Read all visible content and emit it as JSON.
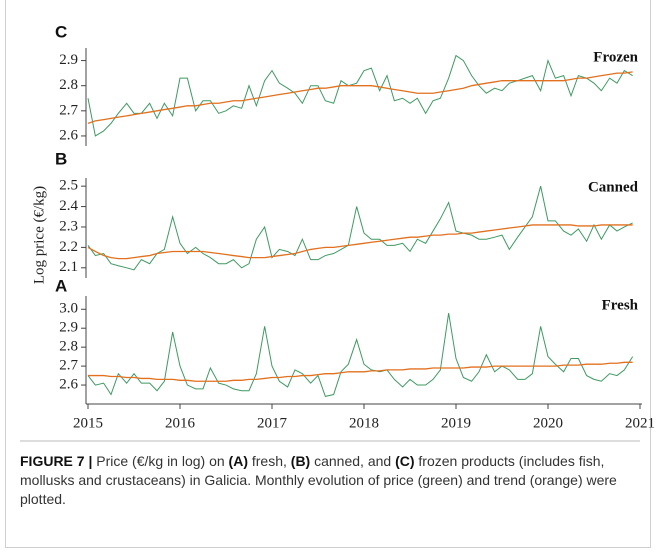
{
  "ylabel": "Log price (€/kg)",
  "caption": [
    "FIGURE 7 |",
    " Price (€/kg in log) on ",
    "(A)",
    " fresh, ",
    "(B)",
    " canned, and ",
    "(C)",
    " frozen products (includes fish, mollusks and crustaceans) in Galicia. Monthly evolution of price (green) and trend (orange) were plotted."
  ],
  "chart_data": [
    {
      "type": "line",
      "panel": "C",
      "title": "Frozen",
      "x": [
        2015,
        2015.08,
        2015.17,
        2015.25,
        2015.33,
        2015.42,
        2015.5,
        2015.58,
        2015.67,
        2015.75,
        2015.83,
        2015.92,
        2016,
        2016.08,
        2016.17,
        2016.25,
        2016.33,
        2016.42,
        2016.5,
        2016.58,
        2016.67,
        2016.75,
        2016.83,
        2016.92,
        2017,
        2017.08,
        2017.17,
        2017.25,
        2017.33,
        2017.42,
        2017.5,
        2017.58,
        2017.67,
        2017.75,
        2017.83,
        2017.92,
        2018,
        2018.08,
        2018.17,
        2018.25,
        2018.33,
        2018.42,
        2018.5,
        2018.58,
        2018.67,
        2018.75,
        2018.83,
        2018.92,
        2019,
        2019.08,
        2019.17,
        2019.25,
        2019.33,
        2019.42,
        2019.5,
        2019.58,
        2019.67,
        2019.75,
        2019.83,
        2019.92,
        2020,
        2020.08,
        2020.17,
        2020.25,
        2020.33,
        2020.42,
        2020.5,
        2020.58,
        2020.67,
        2020.75,
        2020.83,
        2020.92
      ],
      "xlim": [
        2015,
        2021
      ],
      "ylim": [
        2.56,
        2.95
      ],
      "yticks": [
        2.6,
        2.7,
        2.8,
        2.9
      ],
      "series": [
        {
          "color": "#3f9a62",
          "values": [
            2.75,
            2.6,
            2.62,
            2.65,
            2.69,
            2.73,
            2.69,
            2.69,
            2.73,
            2.67,
            2.73,
            2.68,
            2.83,
            2.83,
            2.7,
            2.74,
            2.74,
            2.69,
            2.7,
            2.72,
            2.71,
            2.8,
            2.72,
            2.82,
            2.86,
            2.81,
            2.79,
            2.77,
            2.73,
            2.8,
            2.8,
            2.74,
            2.73,
            2.82,
            2.8,
            2.81,
            2.86,
            2.87,
            2.78,
            2.84,
            2.74,
            2.75,
            2.73,
            2.75,
            2.69,
            2.74,
            2.75,
            2.83,
            2.92,
            2.9,
            2.84,
            2.8,
            2.77,
            2.79,
            2.78,
            2.81,
            2.82,
            2.83,
            2.84,
            2.78,
            2.9,
            2.83,
            2.84,
            2.76,
            2.84,
            2.83,
            2.81,
            2.78,
            2.83,
            2.81,
            2.86,
            2.84
          ]
        },
        {
          "color": "#e2701e",
          "values": [
            2.65,
            2.66,
            2.665,
            2.67,
            2.675,
            2.68,
            2.685,
            2.69,
            2.695,
            2.7,
            2.705,
            2.71,
            2.715,
            2.72,
            2.72,
            2.725,
            2.73,
            2.73,
            2.735,
            2.74,
            2.74,
            2.745,
            2.75,
            2.755,
            2.76,
            2.765,
            2.77,
            2.775,
            2.78,
            2.785,
            2.79,
            2.79,
            2.795,
            2.8,
            2.8,
            2.8,
            2.8,
            2.8,
            2.795,
            2.79,
            2.785,
            2.78,
            2.775,
            2.77,
            2.77,
            2.77,
            2.775,
            2.78,
            2.785,
            2.79,
            2.8,
            2.805,
            2.81,
            2.815,
            2.82,
            2.82,
            2.82,
            2.82,
            2.82,
            2.82,
            2.82,
            2.82,
            2.82,
            2.825,
            2.83,
            2.83,
            2.835,
            2.84,
            2.845,
            2.85,
            2.85,
            2.855
          ]
        }
      ]
    },
    {
      "type": "line",
      "panel": "B",
      "title": "Canned",
      "x": [
        2015,
        2015.08,
        2015.17,
        2015.25,
        2015.33,
        2015.42,
        2015.5,
        2015.58,
        2015.67,
        2015.75,
        2015.83,
        2015.92,
        2016,
        2016.08,
        2016.17,
        2016.25,
        2016.33,
        2016.42,
        2016.5,
        2016.58,
        2016.67,
        2016.75,
        2016.83,
        2016.92,
        2017,
        2017.08,
        2017.17,
        2017.25,
        2017.33,
        2017.42,
        2017.5,
        2017.58,
        2017.67,
        2017.75,
        2017.83,
        2017.92,
        2018,
        2018.08,
        2018.17,
        2018.25,
        2018.33,
        2018.42,
        2018.5,
        2018.58,
        2018.67,
        2018.75,
        2018.83,
        2018.92,
        2019,
        2019.08,
        2019.17,
        2019.25,
        2019.33,
        2019.42,
        2019.5,
        2019.58,
        2019.67,
        2019.75,
        2019.83,
        2019.92,
        2020,
        2020.08,
        2020.17,
        2020.25,
        2020.33,
        2020.42,
        2020.5,
        2020.58,
        2020.67,
        2020.75,
        2020.83,
        2020.92
      ],
      "xlim": [
        2015,
        2021
      ],
      "ylim": [
        2.05,
        2.54
      ],
      "yticks": [
        2.1,
        2.2,
        2.3,
        2.4,
        2.5
      ],
      "series": [
        {
          "color": "#3f9a62",
          "values": [
            2.21,
            2.16,
            2.17,
            2.12,
            2.11,
            2.1,
            2.09,
            2.14,
            2.12,
            2.17,
            2.19,
            2.35,
            2.22,
            2.17,
            2.2,
            2.17,
            2.15,
            2.12,
            2.12,
            2.14,
            2.1,
            2.12,
            2.24,
            2.3,
            2.15,
            2.19,
            2.18,
            2.16,
            2.24,
            2.14,
            2.14,
            2.16,
            2.17,
            2.19,
            2.21,
            2.4,
            2.27,
            2.24,
            2.24,
            2.21,
            2.21,
            2.22,
            2.18,
            2.24,
            2.22,
            2.28,
            2.34,
            2.42,
            2.28,
            2.27,
            2.26,
            2.24,
            2.24,
            2.25,
            2.26,
            2.19,
            2.25,
            2.3,
            2.35,
            2.5,
            2.33,
            2.33,
            2.28,
            2.26,
            2.29,
            2.23,
            2.31,
            2.24,
            2.31,
            2.28,
            2.3,
            2.32
          ]
        },
        {
          "color": "#e2701e",
          "values": [
            2.2,
            2.18,
            2.16,
            2.15,
            2.145,
            2.145,
            2.15,
            2.155,
            2.16,
            2.17,
            2.175,
            2.18,
            2.18,
            2.18,
            2.18,
            2.18,
            2.175,
            2.17,
            2.165,
            2.16,
            2.155,
            2.15,
            2.15,
            2.15,
            2.155,
            2.16,
            2.165,
            2.17,
            2.18,
            2.19,
            2.195,
            2.2,
            2.2,
            2.205,
            2.21,
            2.215,
            2.22,
            2.225,
            2.23,
            2.235,
            2.24,
            2.245,
            2.25,
            2.25,
            2.255,
            2.26,
            2.26,
            2.265,
            2.265,
            2.27,
            2.27,
            2.275,
            2.28,
            2.285,
            2.29,
            2.295,
            2.3,
            2.305,
            2.31,
            2.31,
            2.31,
            2.31,
            2.31,
            2.31,
            2.305,
            2.305,
            2.305,
            2.31,
            2.31,
            2.31,
            2.31,
            2.31
          ]
        }
      ]
    },
    {
      "type": "line",
      "panel": "A",
      "title": "Fresh",
      "x": [
        2015,
        2015.08,
        2015.17,
        2015.25,
        2015.33,
        2015.42,
        2015.5,
        2015.58,
        2015.67,
        2015.75,
        2015.83,
        2015.92,
        2016,
        2016.08,
        2016.17,
        2016.25,
        2016.33,
        2016.42,
        2016.5,
        2016.58,
        2016.67,
        2016.75,
        2016.83,
        2016.92,
        2017,
        2017.08,
        2017.17,
        2017.25,
        2017.33,
        2017.42,
        2017.5,
        2017.58,
        2017.67,
        2017.75,
        2017.83,
        2017.92,
        2018,
        2018.08,
        2018.17,
        2018.25,
        2018.33,
        2018.42,
        2018.5,
        2018.58,
        2018.67,
        2018.75,
        2018.83,
        2018.92,
        2019,
        2019.08,
        2019.17,
        2019.25,
        2019.33,
        2019.42,
        2019.5,
        2019.58,
        2019.67,
        2019.75,
        2019.83,
        2019.92,
        2020,
        2020.08,
        2020.17,
        2020.25,
        2020.33,
        2020.42,
        2020.5,
        2020.58,
        2020.67,
        2020.75,
        2020.83,
        2020.92
      ],
      "xlim": [
        2015,
        2021
      ],
      "xticks": [
        2015,
        2016,
        2017,
        2018,
        2019,
        2020,
        2021
      ],
      "ylim": [
        2.5,
        3.07
      ],
      "yticks": [
        2.6,
        2.7,
        2.8,
        2.9,
        {
          "value": 3,
          "label": "3.0"
        }
      ],
      "series": [
        {
          "color": "#3f9a62",
          "values": [
            2.65,
            2.6,
            2.61,
            2.55,
            2.66,
            2.61,
            2.66,
            2.61,
            2.61,
            2.57,
            2.62,
            2.88,
            2.7,
            2.6,
            2.58,
            2.58,
            2.69,
            2.61,
            2.6,
            2.58,
            2.57,
            2.57,
            2.66,
            2.91,
            2.7,
            2.62,
            2.59,
            2.68,
            2.66,
            2.61,
            2.65,
            2.54,
            2.55,
            2.67,
            2.71,
            2.84,
            2.71,
            2.68,
            2.67,
            2.68,
            2.63,
            2.59,
            2.63,
            2.6,
            2.6,
            2.63,
            2.68,
            2.98,
            2.74,
            2.64,
            2.62,
            2.67,
            2.76,
            2.67,
            2.7,
            2.68,
            2.63,
            2.63,
            2.66,
            2.91,
            2.75,
            2.71,
            2.67,
            2.74,
            2.74,
            2.65,
            2.63,
            2.62,
            2.66,
            2.65,
            2.68,
            2.75
          ]
        },
        {
          "color": "#e2701e",
          "values": [
            2.65,
            2.65,
            2.65,
            2.645,
            2.645,
            2.64,
            2.64,
            2.635,
            2.635,
            2.63,
            2.63,
            2.63,
            2.625,
            2.625,
            2.62,
            2.62,
            2.62,
            2.62,
            2.62,
            2.625,
            2.625,
            2.63,
            2.63,
            2.635,
            2.64,
            2.64,
            2.645,
            2.645,
            2.65,
            2.65,
            2.655,
            2.66,
            2.66,
            2.665,
            2.67,
            2.67,
            2.67,
            2.675,
            2.675,
            2.68,
            2.68,
            2.68,
            2.685,
            2.685,
            2.685,
            2.69,
            2.69,
            2.69,
            2.69,
            2.69,
            2.695,
            2.695,
            2.695,
            2.7,
            2.7,
            2.7,
            2.7,
            2.7,
            2.7,
            2.7,
            2.7,
            2.7,
            2.705,
            2.705,
            2.705,
            2.71,
            2.71,
            2.71,
            2.715,
            2.715,
            2.72,
            2.72
          ]
        }
      ]
    }
  ]
}
